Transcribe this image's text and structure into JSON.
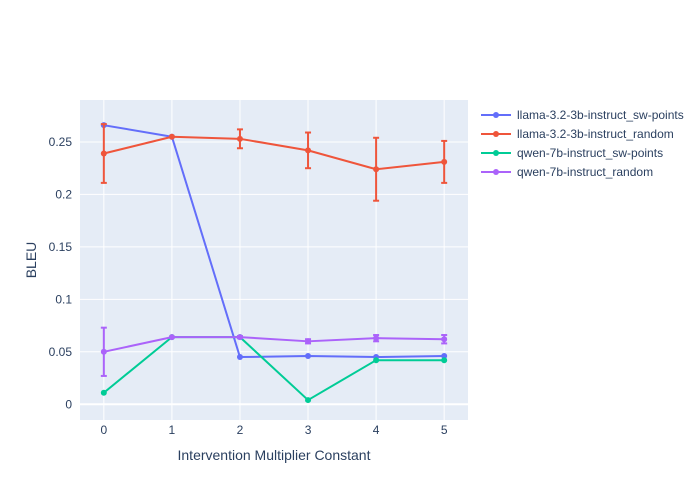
{
  "chart_data": {
    "type": "line",
    "xlabel": "Intervention Multiplier Constant",
    "ylabel": "BLEU",
    "x": [
      0,
      1,
      2,
      3,
      4,
      5
    ],
    "xlim": [
      -0.35,
      5.35
    ],
    "ylim": [
      -0.015,
      0.29
    ],
    "x_ticks": [
      "0",
      "1",
      "2",
      "3",
      "4",
      "5"
    ],
    "y_ticks": [
      0,
      0.05,
      0.1,
      0.15,
      0.2,
      0.25
    ],
    "y_tick_labels": [
      "0",
      "0.05",
      "0.1",
      "0.15",
      "0.2",
      "0.25"
    ],
    "grid": true,
    "legend_position": "right",
    "series": [
      {
        "name": "llama-3.2-3b-instruct_sw-points",
        "color": "#636efa",
        "values": [
          0.266,
          0.255,
          0.045,
          0.046,
          0.045,
          0.046
        ],
        "error": [
          0,
          0,
          0,
          0,
          0,
          0
        ]
      },
      {
        "name": "llama-3.2-3b-instruct_random",
        "color": "#ef553b",
        "values": [
          0.239,
          0.255,
          0.253,
          0.242,
          0.224,
          0.231
        ],
        "error": [
          0.028,
          0,
          0.009,
          0.017,
          0.03,
          0.02
        ]
      },
      {
        "name": "qwen-7b-instruct_sw-points",
        "color": "#00cc96",
        "values": [
          0.011,
          0.064,
          0.064,
          0.004,
          0.042,
          0.042
        ],
        "error": [
          0,
          0,
          0,
          0,
          0,
          0
        ]
      },
      {
        "name": "qwen-7b-instruct_random",
        "color": "#ab63fa",
        "values": [
          0.05,
          0.064,
          0.064,
          0.06,
          0.063,
          0.062
        ],
        "error": [
          0.023,
          0,
          0.001,
          0.002,
          0.003,
          0.004
        ]
      }
    ]
  }
}
